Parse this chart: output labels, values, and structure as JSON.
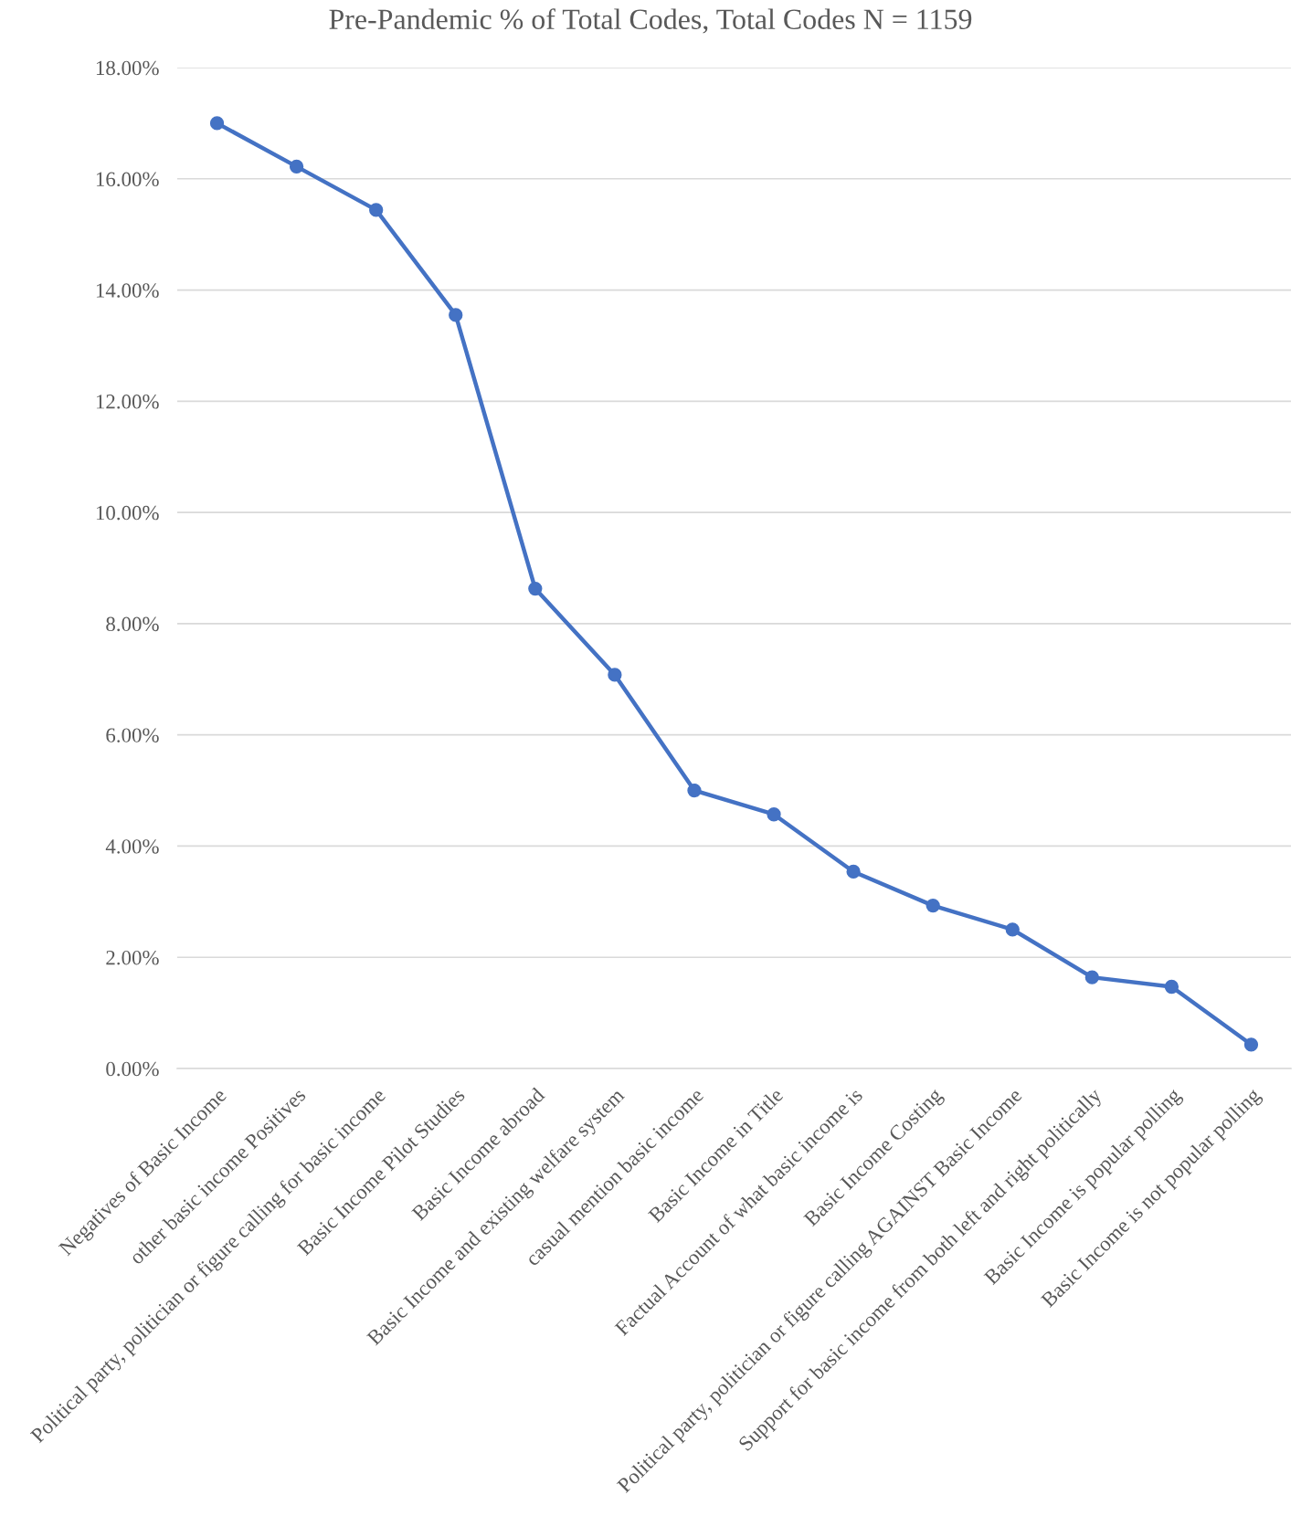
{
  "chart_data": {
    "type": "line",
    "title": "Pre-Pandemic % of Total Codes, Total Codes N = 1159",
    "categories": [
      "Negatives of Basic Income",
      "other basic income Positives",
      "Political party, politician or figure calling for basic income",
      "Basic Income Pilot Studies",
      "Basic Income abroad",
      "Basic Income and existing welfare system",
      "casual mention basic income",
      "Basic Income in Title",
      "Factual Account of what basic income is",
      "Basic Income Costing",
      "Political party, politician or figure calling AGAINST Basic Income",
      "Support for basic income from both left and right politically",
      "Basic Income is popular polling",
      "Basic Income is not popular polling"
    ],
    "series": [
      {
        "color": "#4472c4",
        "values": [
          17.0,
          16.22,
          15.44,
          13.55,
          8.63,
          7.08,
          5.0,
          4.57,
          3.54,
          2.93,
          2.5,
          1.64,
          1.47,
          0.43
        ]
      }
    ],
    "ylim": [
      0,
      18
    ],
    "yticks": [
      {
        "value": 0,
        "label": "0.00%"
      },
      {
        "value": 2,
        "label": "2.00%"
      },
      {
        "value": 4,
        "label": "4.00%"
      },
      {
        "value": 6,
        "label": "6.00%"
      },
      {
        "value": 8,
        "label": "8.00%"
      },
      {
        "value": 10,
        "label": "10.00%"
      },
      {
        "value": 12,
        "label": "12.00%"
      },
      {
        "value": 14,
        "label": "14.00%"
      },
      {
        "value": 16,
        "label": "16.00%"
      },
      {
        "value": 18,
        "label": "18.00%"
      }
    ],
    "grid": "y",
    "marker": "circle",
    "line_style": "solid"
  }
}
